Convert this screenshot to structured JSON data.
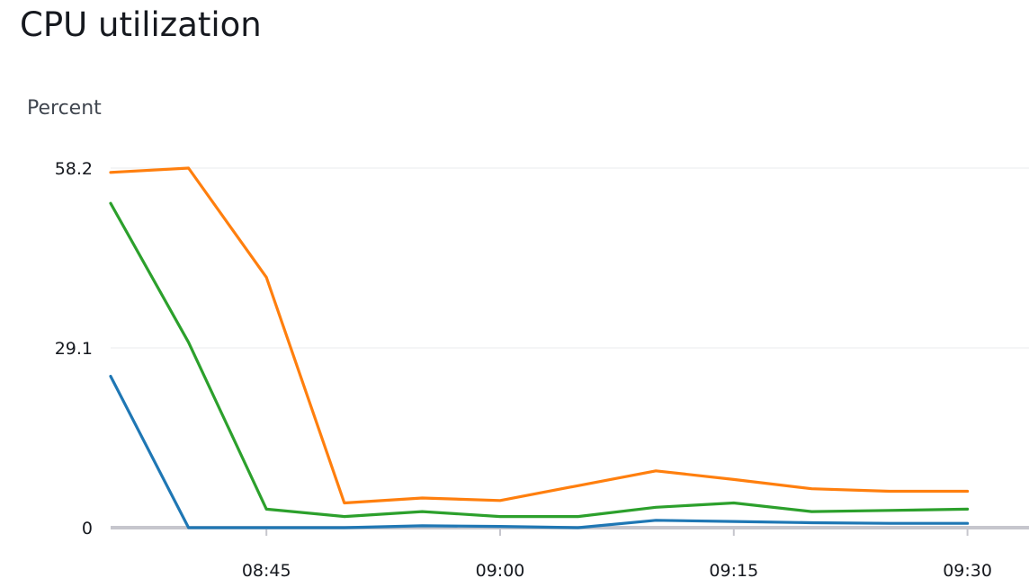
{
  "chart_data": {
    "type": "line",
    "title": "CPU utilization",
    "ylabel": "Percent",
    "xlabel": "",
    "ylim": [
      0,
      58.2
    ],
    "yticks": [
      0,
      29.1,
      58.2
    ],
    "ytick_labels": [
      "0",
      "29.1",
      "58.2"
    ],
    "xticks": [
      "08:45",
      "09:00",
      "09:15",
      "09:30"
    ],
    "x": [
      "08:35",
      "08:40",
      "08:45",
      "08:50",
      "08:55",
      "09:00",
      "09:05",
      "09:10",
      "09:15",
      "09:20",
      "09:25",
      "09:30"
    ],
    "grid": true,
    "series": [
      {
        "color": "#ff7f0e",
        "values": [
          57.5,
          58.2,
          40.5,
          4.0,
          4.8,
          4.4,
          6.8,
          9.2,
          7.8,
          6.3,
          5.9,
          5.9
        ]
      },
      {
        "color": "#2ca02c",
        "values": [
          52.5,
          30.0,
          3.0,
          1.8,
          2.6,
          1.8,
          1.8,
          3.3,
          4.0,
          2.6,
          2.8,
          3.0
        ]
      },
      {
        "color": "#1f77b4",
        "values": [
          24.5,
          0.0,
          0.0,
          0.0,
          0.3,
          0.2,
          0.0,
          1.2,
          1.0,
          0.8,
          0.7,
          0.7
        ]
      }
    ]
  }
}
